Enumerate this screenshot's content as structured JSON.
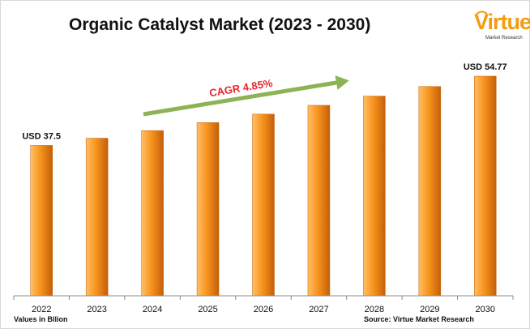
{
  "title": "Organic Catalyst Market (2023 - 2030)",
  "logo": {
    "brand": "Virtue",
    "tagline": "Market Research"
  },
  "footnotes": {
    "units": "Values in Bllion",
    "source": "Source: Virtue Market Research"
  },
  "colors": {
    "bar_light": "#ffbf66",
    "bar_mid": "#f7941d",
    "bar_dark": "#c55f0a",
    "arrow": "#8cb356",
    "cagr_text": "#e3262a",
    "logo": "#f39c12"
  },
  "chart_data": {
    "type": "bar",
    "title": "Organic Catalyst Market (2023 - 2030)",
    "categories": [
      "2022",
      "2023",
      "2024",
      "2025",
      "2026",
      "2027",
      "2028",
      "2029",
      "2030"
    ],
    "values": [
      37.5,
      39.3,
      41.2,
      43.2,
      45.3,
      47.5,
      49.8,
      52.2,
      54.77
    ],
    "data_labels": [
      {
        "category": "2022",
        "text": "USD 37.5"
      },
      {
        "category": "2030",
        "text": "USD 54.77"
      }
    ],
    "annotation": "CAGR 4.85%",
    "ylim": [
      0,
      56
    ],
    "grid": false,
    "legend": "none"
  }
}
